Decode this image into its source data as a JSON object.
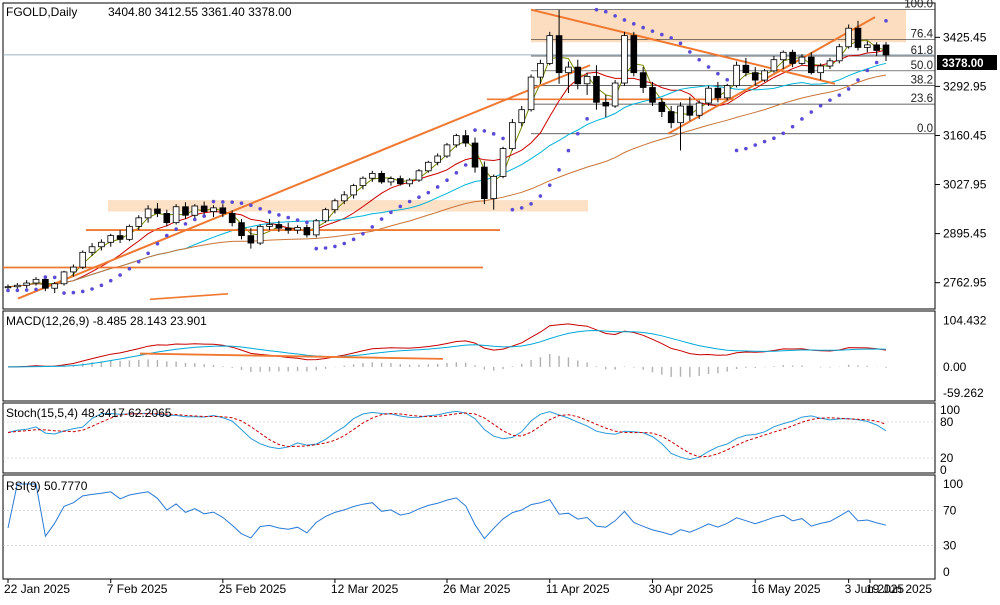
{
  "header": {
    "symbol": "FGOLD,Daily",
    "ohlc": "3404.80 3412.55 3361.40 3378.00"
  },
  "price_tag": "3378.00",
  "colors": {
    "background": "#ffffff",
    "candle_up": "#ffffff",
    "candle_down": "#000000",
    "ma_fast": "#7a8a00",
    "ma_mid": "#cc0000",
    "ma_slow": "#00b4d8",
    "ma_long": "#c8753a",
    "sar": "#5a4bd6",
    "trend": "#f07830",
    "zone": "#fbd7b4",
    "fib": "#333333",
    "macd_line": "#c80000",
    "macd_signal": "#00a8d8",
    "macd_hist": "#b0b0b0",
    "stoch_main": "#2a9ad6",
    "stoch_signal": "#c80000",
    "rsi": "#2a7ad6"
  },
  "chart_data": [
    {
      "type": "candlestick",
      "panel": "price",
      "title": "FGOLD,Daily",
      "yticks": [
        "3425.45",
        "3292.95",
        "3160.45",
        "3027.95",
        "2895.45",
        "2762.95"
      ],
      "ylim": [
        2700,
        3510
      ],
      "x_labels": [
        "22 Jan 2025",
        "7 Feb 2025",
        "25 Feb 2025",
        "12 Mar 2025",
        "26 Mar 2025",
        "11 Apr 2025",
        "30 Apr 2025",
        "16 May 2025",
        "3 Jun 2025",
        "19 Jun 2025"
      ],
      "candles": [
        [
          2751,
          2758,
          2742,
          2752
        ],
        [
          2752,
          2762,
          2745,
          2756
        ],
        [
          2756,
          2770,
          2748,
          2762
        ],
        [
          2762,
          2778,
          2755,
          2772
        ],
        [
          2772,
          2780,
          2740,
          2748
        ],
        [
          2748,
          2765,
          2735,
          2760
        ],
        [
          2760,
          2795,
          2755,
          2792
        ],
        [
          2792,
          2812,
          2780,
          2805
        ],
        [
          2805,
          2850,
          2800,
          2845
        ],
        [
          2845,
          2870,
          2835,
          2860
        ],
        [
          2860,
          2880,
          2850,
          2872
        ],
        [
          2872,
          2895,
          2860,
          2890
        ],
        [
          2890,
          2905,
          2870,
          2880
        ],
        [
          2880,
          2920,
          2875,
          2915
        ],
        [
          2915,
          2945,
          2905,
          2938
        ],
        [
          2938,
          2972,
          2925,
          2962
        ],
        [
          2962,
          2978,
          2940,
          2950
        ],
        [
          2950,
          2960,
          2915,
          2925
        ],
        [
          2925,
          2975,
          2920,
          2968
        ],
        [
          2968,
          2980,
          2935,
          2945
        ],
        [
          2945,
          2975,
          2935,
          2970
        ],
        [
          2970,
          2982,
          2945,
          2955
        ],
        [
          2955,
          2972,
          2940,
          2965
        ],
        [
          2965,
          2975,
          2940,
          2950
        ],
        [
          2950,
          2958,
          2915,
          2925
        ],
        [
          2925,
          2935,
          2880,
          2890
        ],
        [
          2890,
          2910,
          2855,
          2870
        ],
        [
          2870,
          2920,
          2865,
          2915
        ],
        [
          2915,
          2935,
          2905,
          2920
        ],
        [
          2920,
          2930,
          2900,
          2910
        ],
        [
          2910,
          2925,
          2895,
          2905
        ],
        [
          2905,
          2918,
          2895,
          2912
        ],
        [
          2912,
          2920,
          2885,
          2892
        ],
        [
          2892,
          2935,
          2885,
          2930
        ],
        [
          2930,
          2965,
          2925,
          2960
        ],
        [
          2960,
          2990,
          2950,
          2984
        ],
        [
          2984,
          3010,
          2975,
          3000
        ],
        [
          3000,
          3030,
          2990,
          3025
        ],
        [
          3025,
          3050,
          3015,
          3045
        ],
        [
          3045,
          3065,
          3035,
          3058
        ],
        [
          3058,
          3065,
          3030,
          3035
        ],
        [
          3035,
          3050,
          3025,
          3044
        ],
        [
          3044,
          3052,
          3025,
          3030
        ],
        [
          3030,
          3045,
          3022,
          3040
        ],
        [
          3040,
          3070,
          3035,
          3065
        ],
        [
          3065,
          3092,
          3060,
          3088
        ],
        [
          3088,
          3112,
          3080,
          3105
        ],
        [
          3105,
          3140,
          3100,
          3135
        ],
        [
          3135,
          3165,
          3128,
          3160
        ],
        [
          3160,
          3175,
          3130,
          3140
        ],
        [
          3140,
          3155,
          3060,
          3075
        ],
        [
          3075,
          3090,
          2975,
          2990
        ],
        [
          2990,
          3055,
          2960,
          3050
        ],
        [
          3050,
          3130,
          3045,
          3125
        ],
        [
          3125,
          3205,
          3120,
          3195
        ],
        [
          3195,
          3240,
          3185,
          3230
        ],
        [
          3230,
          3325,
          3225,
          3318
        ],
        [
          3318,
          3365,
          3300,
          3355
        ],
        [
          3355,
          3440,
          3350,
          3430
        ],
        [
          3430,
          3500,
          3300,
          3330
        ],
        [
          3330,
          3360,
          3275,
          3345
        ],
        [
          3345,
          3365,
          3285,
          3300
        ],
        [
          3300,
          3330,
          3270,
          3320
        ],
        [
          3320,
          3350,
          3230,
          3250
        ],
        [
          3250,
          3270,
          3210,
          3240
        ],
        [
          3240,
          3310,
          3235,
          3302
        ],
        [
          3302,
          3440,
          3295,
          3430
        ],
        [
          3430,
          3440,
          3320,
          3330
        ],
        [
          3330,
          3345,
          3275,
          3290
        ],
        [
          3290,
          3305,
          3240,
          3250
        ],
        [
          3250,
          3262,
          3210,
          3225
        ],
        [
          3225,
          3240,
          3180,
          3195
        ],
        [
          3195,
          3250,
          3120,
          3240
        ],
        [
          3240,
          3265,
          3200,
          3215
        ],
        [
          3215,
          3255,
          3205,
          3248
        ],
        [
          3248,
          3295,
          3240,
          3288
        ],
        [
          3288,
          3305,
          3250,
          3262
        ],
        [
          3262,
          3300,
          3255,
          3295
        ],
        [
          3295,
          3360,
          3290,
          3350
        ],
        [
          3350,
          3370,
          3320,
          3330
        ],
        [
          3330,
          3345,
          3295,
          3310
        ],
        [
          3310,
          3340,
          3305,
          3335
        ],
        [
          3335,
          3375,
          3330,
          3365
        ],
        [
          3365,
          3390,
          3340,
          3385
        ],
        [
          3385,
          3392,
          3345,
          3355
        ],
        [
          3355,
          3380,
          3350,
          3372
        ],
        [
          3372,
          3385,
          3325,
          3330
        ],
        [
          3330,
          3355,
          3310,
          3348
        ],
        [
          3348,
          3370,
          3340,
          3362
        ],
        [
          3362,
          3408,
          3355,
          3400
        ],
        [
          3400,
          3460,
          3395,
          3450
        ],
        [
          3450,
          3470,
          3390,
          3398
        ],
        [
          3398,
          3415,
          3385,
          3405
        ],
        [
          3405,
          3412,
          3375,
          3390
        ],
        [
          3404.8,
          3412.55,
          3361.4,
          3378.0
        ]
      ]
    },
    {
      "type": "line",
      "panel": "macd",
      "label": "MACD(12,26,9) -8.485 28.143 23.901",
      "yticks": [
        "104.432",
        "0.00",
        "-59.262"
      ],
      "ylim": [
        -70,
        110
      ]
    },
    {
      "type": "line",
      "panel": "stoch",
      "label": "Stoch(15,5,4) 48.3417 62.2065",
      "yticks": [
        "100",
        "80",
        "20",
        "0"
      ],
      "ylim": [
        0,
        100
      ]
    },
    {
      "type": "line",
      "panel": "rsi",
      "label": "RSI(9) 50.7770",
      "yticks": [
        "100",
        "70",
        "30",
        "0"
      ],
      "ylim": [
        0,
        100
      ]
    }
  ],
  "fib_levels": [
    "100.0",
    "76.4",
    "61.8",
    "50.0",
    "38.2",
    "23.6",
    "0.0"
  ]
}
